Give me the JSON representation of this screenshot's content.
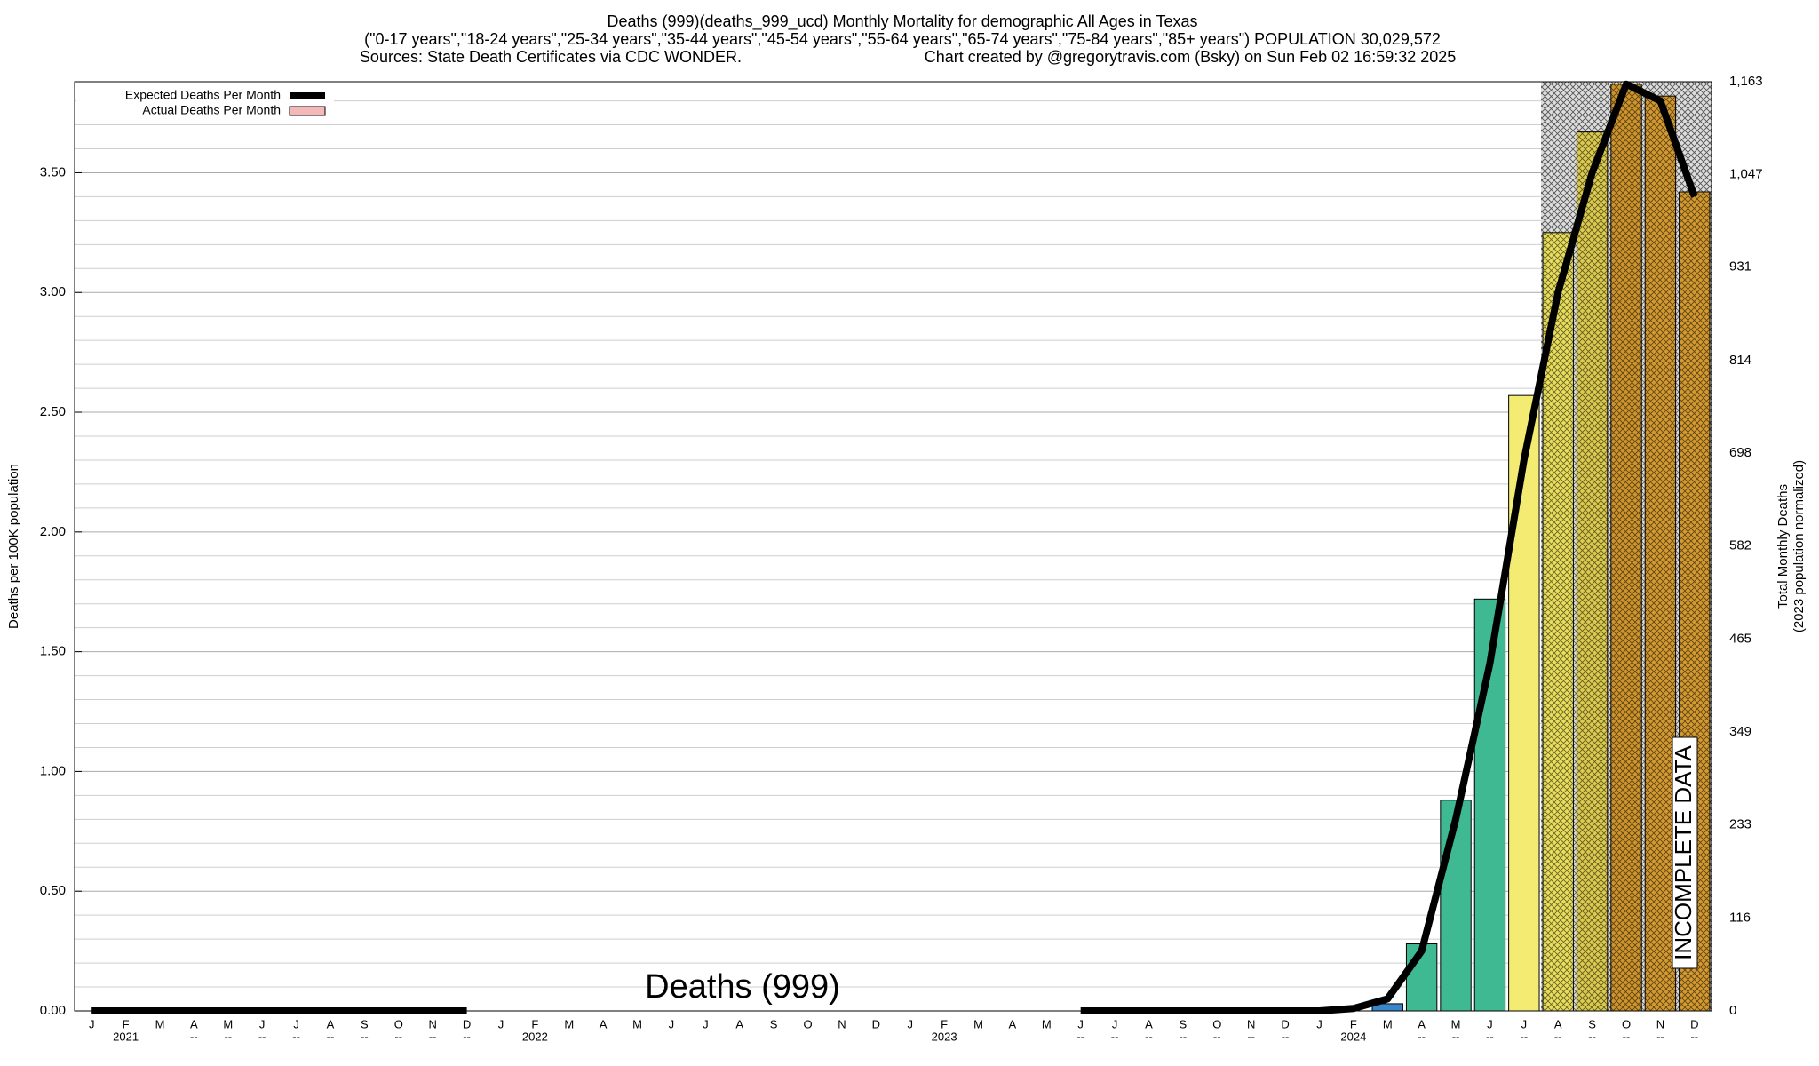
{
  "chart_data": {
    "type": "bar",
    "title": "Deaths (999)(deaths_999_ucd) Monthly Mortality for demographic All Ages in Texas",
    "subtitle": "(\"0-17 years\",\"18-24 years\",\"25-34 years\",\"35-44 years\",\"45-54 years\",\"55-64 years\",\"65-74 years\",\"75-84 years\",\"85+ years\") POPULATION 30,029,572",
    "sources": "Sources: State Death Certificates via CDC WONDER.",
    "credit": "Chart created by @gregorytravis.com (Bsky) on Sun Feb 02 16:59:32 2025",
    "watermark": "Deaths (999)",
    "annotation": "INCOMPLETE DATA",
    "ylabel": "Deaths per 100K population",
    "y2label": [
      "Total Monthly Deaths",
      "(2023 population normalized)"
    ],
    "categories": [
      "J",
      "F",
      "M",
      "A",
      "M",
      "J",
      "J",
      "A",
      "S",
      "O",
      "N",
      "D",
      "J",
      "F",
      "M",
      "A",
      "M",
      "J",
      "J",
      "A",
      "S",
      "O",
      "N",
      "D",
      "J",
      "F",
      "M",
      "A",
      "M",
      "J",
      "J",
      "A",
      "S",
      "O",
      "N",
      "D",
      "J",
      "F",
      "M",
      "A",
      "M",
      "J",
      "J",
      "A",
      "S",
      "O",
      "N",
      "D"
    ],
    "sublabels": [
      null,
      "2021",
      null,
      "--",
      "--",
      "--",
      "--",
      "--",
      "--",
      "--",
      "--",
      "--",
      null,
      "2022",
      null,
      null,
      null,
      null,
      null,
      null,
      null,
      null,
      null,
      null,
      null,
      "2023",
      null,
      null,
      null,
      "--",
      "--",
      "--",
      "--",
      "--",
      "--",
      "--",
      null,
      "2024",
      null,
      "--",
      "--",
      "--",
      "--",
      "--",
      "--",
      "--",
      "--",
      "--"
    ],
    "series": [
      {
        "name": "Actual Deaths Per Month",
        "color": "#f4b8b8",
        "values": [
          null,
          null,
          null,
          null,
          null,
          null,
          null,
          null,
          null,
          null,
          null,
          null,
          null,
          null,
          null,
          null,
          null,
          null,
          null,
          null,
          null,
          null,
          null,
          null,
          null,
          null,
          null,
          null,
          null,
          null,
          null,
          null,
          null,
          null,
          null,
          null,
          null,
          null,
          0.03,
          0.28,
          0.88,
          1.72,
          2.57,
          3.25,
          3.67,
          3.87,
          3.82,
          3.42
        ],
        "bar_colors": [
          null,
          null,
          null,
          null,
          null,
          null,
          null,
          null,
          null,
          null,
          null,
          null,
          null,
          null,
          null,
          null,
          null,
          null,
          null,
          null,
          null,
          null,
          null,
          null,
          null,
          null,
          null,
          null,
          null,
          null,
          null,
          null,
          null,
          null,
          null,
          null,
          null,
          null,
          "#3a86c8",
          "#3fb992",
          "#3fb992",
          "#3fb992",
          "#f4ec72",
          "#e9de5c",
          "#dccb4e",
          "#cf952c",
          "#d49a30",
          "#d49a30"
        ],
        "hatched": [
          false,
          false,
          false,
          false,
          false,
          false,
          false,
          false,
          false,
          false,
          false,
          false,
          false,
          false,
          false,
          false,
          false,
          false,
          false,
          false,
          false,
          false,
          false,
          false,
          false,
          false,
          false,
          false,
          false,
          false,
          false,
          false,
          false,
          false,
          false,
          false,
          false,
          false,
          false,
          false,
          false,
          false,
          false,
          true,
          true,
          true,
          true,
          true
        ]
      },
      {
        "name": "Expected Deaths Per Month",
        "color": "#000000",
        "values": [
          0,
          0,
          0,
          0,
          0,
          0,
          0,
          0,
          0,
          0,
          0,
          0,
          null,
          null,
          null,
          null,
          null,
          null,
          null,
          null,
          null,
          null,
          null,
          null,
          null,
          null,
          null,
          null,
          null,
          0,
          0,
          0,
          0,
          0,
          0,
          0,
          0,
          0.01,
          0.05,
          0.25,
          0.8,
          1.45,
          2.3,
          3.0,
          3.5,
          3.87,
          3.8,
          3.4
        ]
      }
    ],
    "ylim": [
      0,
      3.88
    ],
    "yticks": [
      {
        "value": 0,
        "label": "0.00"
      },
      {
        "value": 0.5,
        "label": "0.50"
      },
      {
        "value": 1,
        "label": "1.00"
      },
      {
        "value": 1.5,
        "label": "1.50"
      },
      {
        "value": 2,
        "label": "2.00"
      },
      {
        "value": 2.5,
        "label": "2.50"
      },
      {
        "value": 3,
        "label": "3.00"
      },
      {
        "value": 3.5,
        "label": "3.50"
      }
    ],
    "y2lim": [
      0,
      1163
    ],
    "y2ticks": [
      0,
      116,
      233,
      349,
      465,
      582,
      698,
      814,
      931,
      {
        "value": 1047,
        "label": "1,047"
      },
      {
        "value": 1163,
        "label": "1,163"
      }
    ],
    "grid": true,
    "legend": "top-left"
  }
}
